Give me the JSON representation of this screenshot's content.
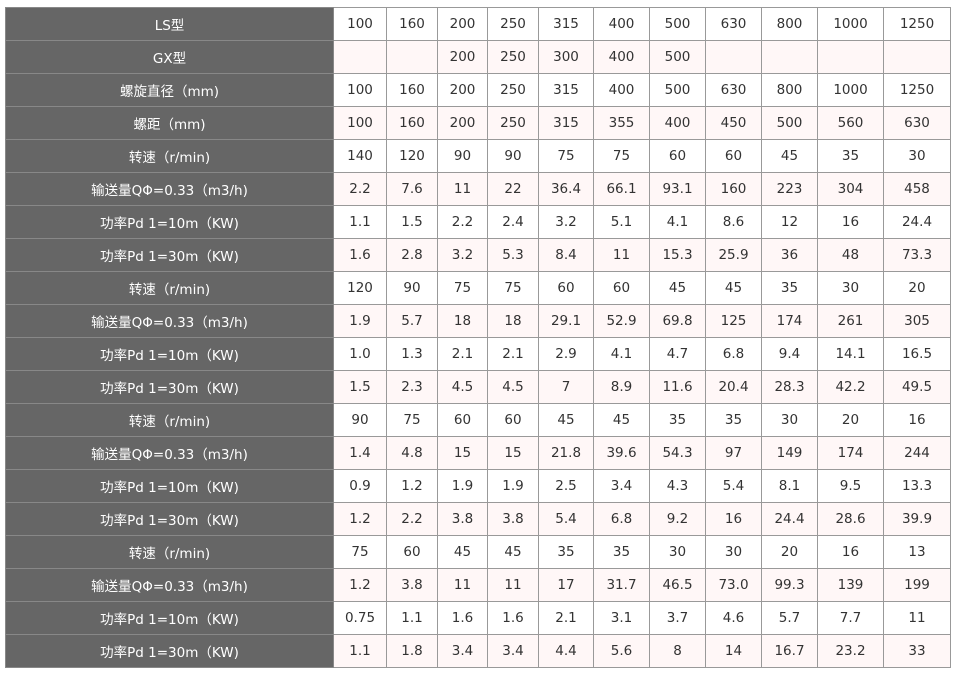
{
  "colors": {
    "header_bg": "#666666",
    "header_text": "#ffffff",
    "alt_row_bg": "#fff7f7",
    "border": "#999999"
  },
  "table": {
    "rows": [
      {
        "label": "LS型",
        "values": [
          "100",
          "160",
          "200",
          "250",
          "315",
          "400",
          "500",
          "630",
          "800",
          "1000",
          "1250"
        ]
      },
      {
        "label": "GX型",
        "values": [
          "",
          "",
          "200",
          "250",
          "300",
          "400",
          "500",
          "",
          "",
          "",
          ""
        ]
      },
      {
        "label": "螺旋直径（mm)",
        "values": [
          "100",
          "160",
          "200",
          "250",
          "315",
          "400",
          "500",
          "630",
          "800",
          "1000",
          "1250"
        ]
      },
      {
        "label": "螺距（mm)",
        "values": [
          "100",
          "160",
          "200",
          "250",
          "315",
          "355",
          "400",
          "450",
          "500",
          "560",
          "630"
        ]
      },
      {
        "label": "转速（r/min)",
        "values": [
          "140",
          "120",
          "90",
          "90",
          "75",
          "75",
          "60",
          "60",
          "45",
          "35",
          "30"
        ]
      },
      {
        "label": "输送量QΦ=0.33（m3/h)",
        "values": [
          "2.2",
          "7.6",
          "11",
          "22",
          "36.4",
          "66.1",
          "93.1",
          "160",
          "223",
          "304",
          "458"
        ]
      },
      {
        "label": "功率Pd 1=10m（KW)",
        "values": [
          "1.1",
          "1.5",
          "2.2",
          "2.4",
          "3.2",
          "5.1",
          "4.1",
          "8.6",
          "12",
          "16",
          "24.4"
        ]
      },
      {
        "label": "功率Pd 1=30m（KW)",
        "values": [
          "1.6",
          "2.8",
          "3.2",
          "5.3",
          "8.4",
          "11",
          "15.3",
          "25.9",
          "36",
          "48",
          "73.3"
        ]
      },
      {
        "label": "转速（r/min)",
        "values": [
          "120",
          "90",
          "75",
          "75",
          "60",
          "60",
          "45",
          "45",
          "35",
          "30",
          "20"
        ]
      },
      {
        "label": "输送量QΦ=0.33（m3/h)",
        "values": [
          "1.9",
          "5.7",
          "18",
          "18",
          "29.1",
          "52.9",
          "69.8",
          "125",
          "174",
          "261",
          "305"
        ]
      },
      {
        "label": "功率Pd 1=10m（KW)",
        "values": [
          "1.0",
          "1.3",
          "2.1",
          "2.1",
          "2.9",
          "4.1",
          "4.7",
          "6.8",
          "9.4",
          "14.1",
          "16.5"
        ]
      },
      {
        "label": "功率Pd 1=30m（KW)",
        "values": [
          "1.5",
          "2.3",
          "4.5",
          "4.5",
          "7",
          "8.9",
          "11.6",
          "20.4",
          "28.3",
          "42.2",
          "49.5"
        ]
      },
      {
        "label": "转速（r/min)",
        "values": [
          "90",
          "75",
          "60",
          "60",
          "45",
          "45",
          "35",
          "35",
          "30",
          "20",
          "16"
        ]
      },
      {
        "label": "输送量QΦ=0.33（m3/h)",
        "values": [
          "1.4",
          "4.8",
          "15",
          "15",
          "21.8",
          "39.6",
          "54.3",
          "97",
          "149",
          "174",
          "244"
        ]
      },
      {
        "label": "功率Pd 1=10m（KW)",
        "values": [
          "0.9",
          "1.2",
          "1.9",
          "1.9",
          "2.5",
          "3.4",
          "4.3",
          "5.4",
          "8.1",
          "9.5",
          "13.3"
        ]
      },
      {
        "label": "功率Pd 1=30m（KW)",
        "values": [
          "1.2",
          "2.2",
          "3.8",
          "3.8",
          "5.4",
          "6.8",
          "9.2",
          "16",
          "24.4",
          "28.6",
          "39.9"
        ]
      },
      {
        "label": "转速（r/min)",
        "values": [
          "75",
          "60",
          "45",
          "45",
          "35",
          "35",
          "30",
          "30",
          "20",
          "16",
          "13"
        ]
      },
      {
        "label": "输送量QΦ=0.33（m3/h)",
        "values": [
          "1.2",
          "3.8",
          "11",
          "11",
          "17",
          "31.7",
          "46.5",
          "73.0",
          "99.3",
          "139",
          "199"
        ]
      },
      {
        "label": "功率Pd 1=10m（KW)",
        "values": [
          "0.75",
          "1.1",
          "1.6",
          "1.6",
          "2.1",
          "3.1",
          "3.7",
          "4.6",
          "5.7",
          "7.7",
          "11"
        ]
      },
      {
        "label": "功率Pd 1=30m（KW)",
        "values": [
          "1.1",
          "1.8",
          "3.4",
          "3.4",
          "4.4",
          "5.6",
          "8",
          "14",
          "16.7",
          "23.2",
          "33"
        ]
      }
    ]
  }
}
